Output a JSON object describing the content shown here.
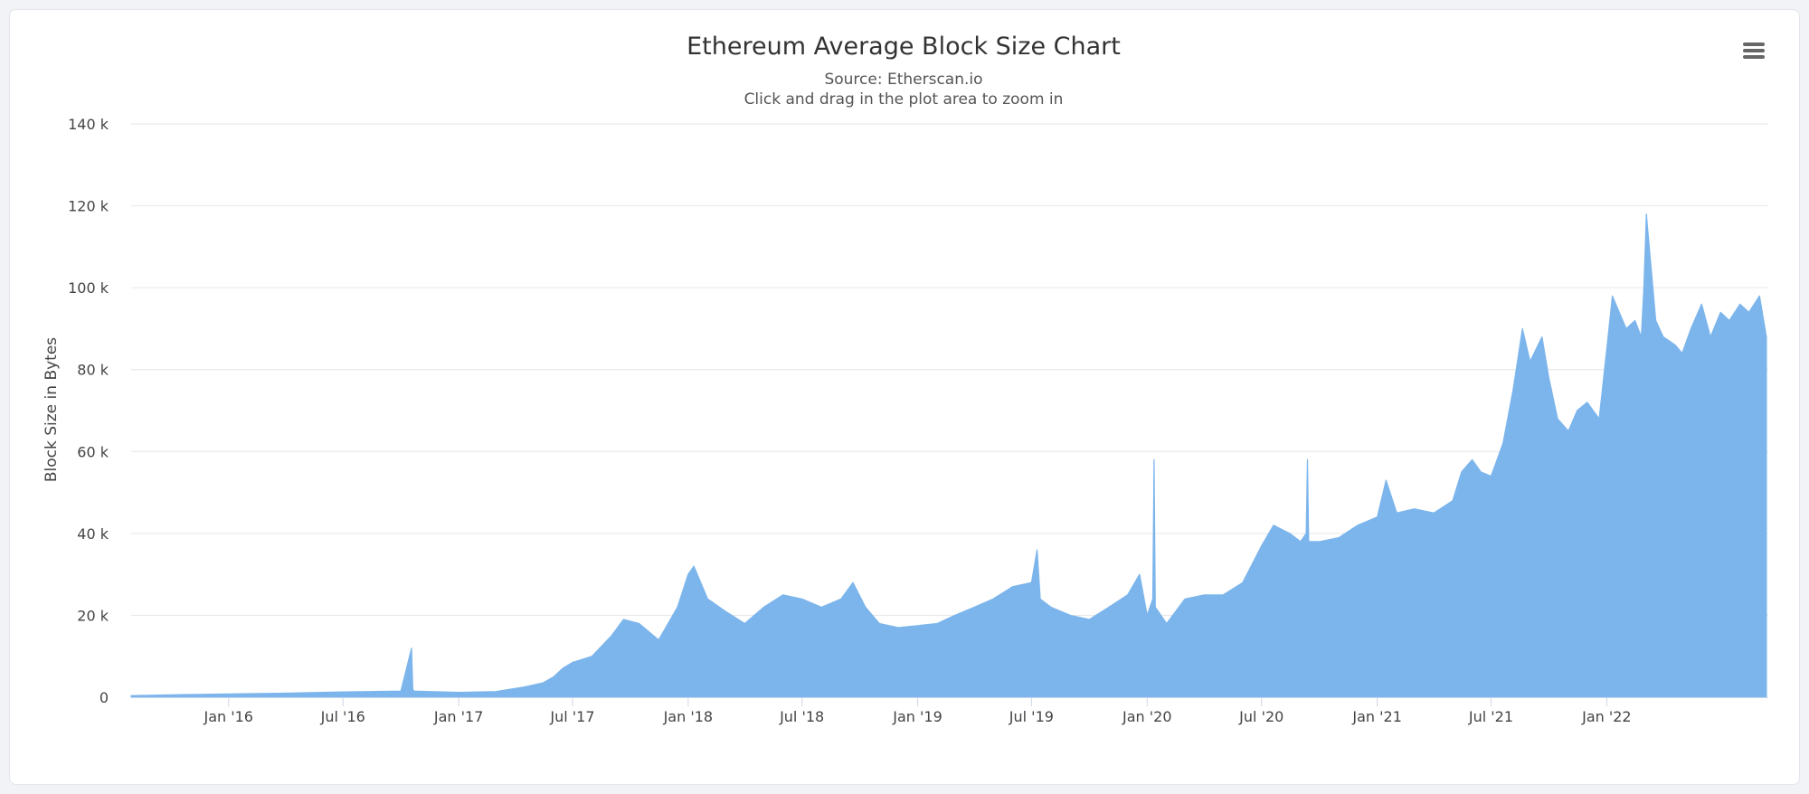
{
  "title": "Ethereum Average Block Size Chart",
  "subtitle_source": "Source: Etherscan.io",
  "subtitle_hint": "Click and drag in the plot area to zoom in",
  "menu": {
    "icon": "hamburger-menu-icon"
  },
  "colors": {
    "area": "#7cb5ec",
    "grid": "#e6e6e6",
    "background": "#ffffff"
  },
  "chart_data": {
    "type": "area",
    "ylabel": "Block Size in Bytes",
    "ylim": [
      0,
      140000
    ],
    "y_ticks": [
      0,
      20000,
      40000,
      60000,
      80000,
      100000,
      120000,
      140000
    ],
    "y_tick_labels": [
      "0",
      "20 k",
      "40 k",
      "60 k",
      "80 k",
      "100 k",
      "120 k",
      "140 k"
    ],
    "xlim": [
      "2015-07-30",
      "2022-09-15"
    ],
    "x_ticks": [
      "2016-01-01",
      "2016-07-01",
      "2017-01-01",
      "2017-07-01",
      "2018-01-01",
      "2018-07-01",
      "2019-01-01",
      "2019-07-01",
      "2020-01-01",
      "2020-07-01",
      "2021-01-01",
      "2021-07-01",
      "2022-01-01"
    ],
    "x_tick_labels": [
      "Jan '16",
      "Jul '16",
      "Jan '17",
      "Jul '17",
      "Jan '18",
      "Jul '18",
      "Jan '19",
      "Jul '19",
      "Jan '20",
      "Jul '20",
      "Jan '21",
      "Jul '21",
      "Jan '22"
    ],
    "grid": true,
    "legend": "none",
    "series": [
      {
        "x": [
          "2015-07-30",
          "2015-10-01",
          "2016-01-01",
          "2016-04-01",
          "2016-07-01",
          "2016-10-01",
          "2016-10-18",
          "2016-10-20",
          "2016-10-22",
          "2017-01-01",
          "2017-03-01",
          "2017-04-15",
          "2017-05-15",
          "2017-06-01",
          "2017-06-15",
          "2017-07-01",
          "2017-08-01",
          "2017-09-01",
          "2017-09-20",
          "2017-10-15",
          "2017-11-15",
          "2017-12-15",
          "2018-01-01",
          "2018-01-10",
          "2018-02-01",
          "2018-03-01",
          "2018-04-01",
          "2018-05-01",
          "2018-06-01",
          "2018-07-01",
          "2018-08-01",
          "2018-09-01",
          "2018-09-20",
          "2018-10-10",
          "2018-11-01",
          "2018-12-01",
          "2019-01-01",
          "2019-02-01",
          "2019-03-01",
          "2019-04-01",
          "2019-05-01",
          "2019-06-01",
          "2019-07-01",
          "2019-07-10",
          "2019-07-15",
          "2019-08-01",
          "2019-09-01",
          "2019-10-01",
          "2019-11-01",
          "2019-12-01",
          "2019-12-20",
          "2020-01-01",
          "2020-01-10",
          "2020-01-12",
          "2020-01-14",
          "2020-02-01",
          "2020-03-01",
          "2020-04-01",
          "2020-05-01",
          "2020-06-01",
          "2020-07-01",
          "2020-07-20",
          "2020-08-15",
          "2020-09-01",
          "2020-09-10",
          "2020-09-12",
          "2020-09-14",
          "2020-10-01",
          "2020-11-01",
          "2020-12-01",
          "2021-01-01",
          "2021-01-15",
          "2021-02-01",
          "2021-03-01",
          "2021-04-01",
          "2021-05-01",
          "2021-05-15",
          "2021-06-01",
          "2021-06-15",
          "2021-07-01",
          "2021-07-20",
          "2021-08-05",
          "2021-08-20",
          "2021-09-01",
          "2021-09-20",
          "2021-10-01",
          "2021-10-15",
          "2021-11-01",
          "2021-11-15",
          "2021-12-01",
          "2021-12-20",
          "2022-01-01",
          "2022-01-10",
          "2022-02-01",
          "2022-02-15",
          "2022-02-25",
          "2022-03-01",
          "2022-03-05",
          "2022-03-20",
          "2022-04-01",
          "2022-04-20",
          "2022-05-01",
          "2022-05-15",
          "2022-06-01",
          "2022-06-15",
          "2022-07-01",
          "2022-07-15",
          "2022-08-01",
          "2022-08-15",
          "2022-09-01",
          "2022-09-12"
        ],
        "y": [
          400,
          600,
          800,
          1000,
          1300,
          1500,
          12000,
          2000,
          1500,
          1200,
          1400,
          2500,
          3500,
          5000,
          7000,
          8500,
          10000,
          15000,
          19000,
          18000,
          14000,
          22000,
          30000,
          32000,
          24000,
          21000,
          18000,
          22000,
          25000,
          24000,
          22000,
          24000,
          28000,
          22000,
          18000,
          17000,
          17500,
          18000,
          20000,
          22000,
          24000,
          27000,
          28000,
          36000,
          24000,
          22000,
          20000,
          19000,
          22000,
          25000,
          30000,
          20000,
          24000,
          58000,
          22000,
          18000,
          24000,
          25000,
          25000,
          28000,
          37000,
          42000,
          40000,
          38000,
          40000,
          58000,
          38000,
          38000,
          39000,
          42000,
          44000,
          53000,
          45000,
          46000,
          45000,
          48000,
          55000,
          58000,
          55000,
          54000,
          62000,
          75000,
          90000,
          82000,
          88000,
          78000,
          68000,
          65000,
          70000,
          72000,
          68000,
          85000,
          98000,
          90000,
          92000,
          88000,
          100000,
          118000,
          92000,
          88000,
          86000,
          84000,
          90000,
          96000,
          88000,
          94000,
          92000,
          96000,
          94000,
          98000,
          88000
        ]
      }
    ]
  }
}
